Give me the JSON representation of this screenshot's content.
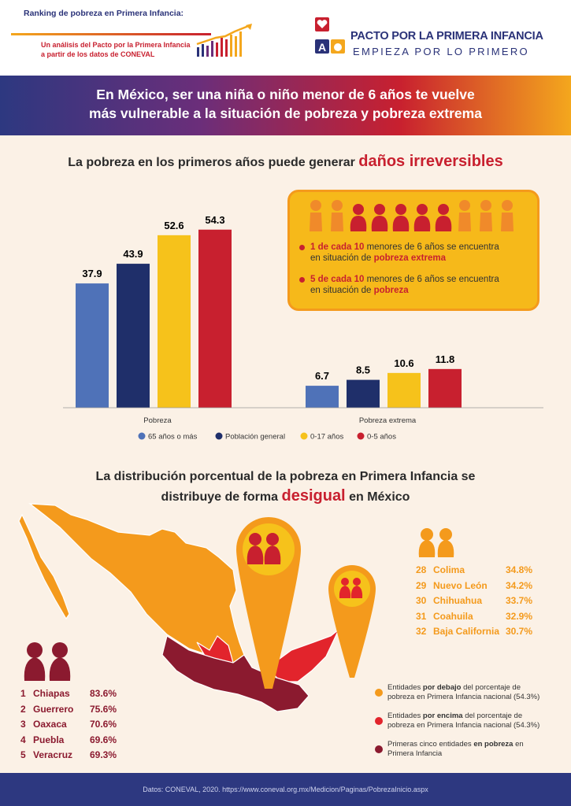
{
  "header": {
    "title": "Ranking de pobreza en Primera Infancia:",
    "subtitle_line1": "Un análisis del Pacto por la Primera Infancia",
    "subtitle_line2": "a partir de los datos de CONEVAL",
    "logo_name": "PACTO POR LA PRIMERA INFANCIA",
    "logo_tagline": "EMPIEZA POR LO PRIMERO",
    "logo_letter": "A"
  },
  "banner": {
    "line1": "En México, ser una niña o niño menor de 6 años te vuelve",
    "line2": "más vulnerable a la situación de pobreza y pobreza extrema"
  },
  "section1": {
    "heading_prefix": "La pobreza en los primeros años puede generar",
    "heading_highlight": "daños irreversibles"
  },
  "chart_data": {
    "type": "bar",
    "categories": [
      "Pobreza",
      "Pobreza extrema"
    ],
    "series": [
      {
        "name": "65 años o más",
        "values": [
          37.9,
          6.7
        ],
        "color": "#4f72b8"
      },
      {
        "name": "Población general",
        "values": [
          43.9,
          8.5
        ],
        "color": "#1f2f6a"
      },
      {
        "name": "0-17 años",
        "values": [
          52.6,
          10.6
        ],
        "color": "#f6c21b"
      },
      {
        "name": "0-5 años",
        "values": [
          54.3,
          11.8
        ],
        "color": "#c8202f"
      }
    ],
    "data_labels": [
      [
        "37.9",
        "43.9",
        "52.6",
        "54.3"
      ],
      [
        "6.7",
        "8.5",
        "10.6",
        "11.8"
      ]
    ],
    "ylim": [
      0,
      60
    ],
    "legend": "bottom",
    "grid": false
  },
  "info_box": {
    "line1_bold": "1 de cada 10",
    "line1_rest": " menores de 6 años se encuentra",
    "line1b_prefix": "en situación de ",
    "line1b_bold": "pobreza extrema",
    "line2_bold": "5 de cada 10",
    "line2_rest": " menores de 6 años se encuentra",
    "line2b_prefix": "en situación de ",
    "line2b_bold": "pobreza"
  },
  "section2": {
    "heading_line1": "La distribución porcentual de la pobreza en Primera Infancia se",
    "heading_line2_prefix": "distribuye de forma",
    "heading_line2_highlight": "desigual",
    "heading_line2_suffix": "en México"
  },
  "top5": [
    {
      "rank": "1",
      "state": "Chiapas",
      "value": "83.6%"
    },
    {
      "rank": "2",
      "state": "Guerrero",
      "value": "75.6%"
    },
    {
      "rank": "3",
      "state": "Oaxaca",
      "value": "70.6%"
    },
    {
      "rank": "4",
      "state": "Puebla",
      "value": "69.6%"
    },
    {
      "rank": "5",
      "state": "Veracruz",
      "value": "69.3%"
    }
  ],
  "bottom5": [
    {
      "rank": "28",
      "state": "Colima",
      "value": "34.8%"
    },
    {
      "rank": "29",
      "state": "Nuevo León",
      "value": "34.2%"
    },
    {
      "rank": "30",
      "state": "Chihuahua",
      "value": "33.7%"
    },
    {
      "rank": "31",
      "state": "Coahuila",
      "value": "32.9%"
    },
    {
      "rank": "32",
      "state": "Baja California",
      "value": "30.7%"
    }
  ],
  "map_legend": [
    {
      "color": "#f49a1c",
      "text_a": "Entidades ",
      "bold": "por debajo",
      "text_b": " del porcentaje de",
      "line2": "pobreza en Primera Infancia nacional (54.3%)"
    },
    {
      "color": "#e2242c",
      "text_a": "Entidades ",
      "bold": "por encima",
      "text_b": " del porcentaje de",
      "line2": "pobreza en Primera Infancia nacional (54.3%)"
    },
    {
      "color": "#8b1a2f",
      "text_a": "Primeras cinco entidades ",
      "bold": "en pobreza",
      "text_b": " en",
      "line2": "Primera Infancia"
    }
  ],
  "footer": {
    "text": "Datos: CONEVAL, 2020. https://www.coneval.org.mx/Medicion/Paginas/PobrezaInicio.aspx"
  }
}
